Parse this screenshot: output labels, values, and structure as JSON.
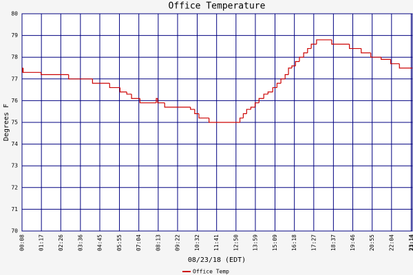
{
  "chart_data": {
    "type": "line",
    "title": "Office Temperature",
    "x_label": "08/23/18 (EDT)",
    "y_label": "Degrees F",
    "step": true,
    "grid": true,
    "grid_color": "#000080",
    "legend": "bottom",
    "x": [
      "00:08",
      "00:10",
      "00:12",
      "01:16",
      "02:54",
      "04:19",
      "05:20",
      "05:57",
      "06:21",
      "06:38",
      "07:08",
      "08:06",
      "08:11",
      "08:36",
      "10:08",
      "10:23",
      "10:38",
      "11:14",
      "13:04",
      "13:16",
      "13:28",
      "13:43",
      "13:58",
      "14:12",
      "14:29",
      "14:44",
      "15:01",
      "15:16",
      "15:30",
      "15:45",
      "15:57",
      "16:09",
      "16:22",
      "16:36",
      "16:51",
      "17:05",
      "17:18",
      "17:37",
      "18:31",
      "19:34",
      "20:16",
      "20:50",
      "21:27",
      "22:01",
      "22:32",
      "23:18"
    ],
    "series": [
      {
        "name": "Office Temp",
        "color": "#cc0000",
        "values": [
          77.3,
          77.5,
          77.3,
          77.2,
          77.0,
          76.8,
          76.6,
          76.4,
          76.3,
          76.1,
          75.9,
          76.1,
          75.9,
          75.7,
          75.6,
          75.4,
          75.2,
          75.0,
          75.2,
          75.4,
          75.6,
          75.7,
          75.9,
          76.1,
          76.3,
          76.4,
          76.6,
          76.8,
          77.0,
          77.2,
          77.5,
          77.6,
          77.8,
          78.0,
          78.2,
          78.4,
          78.6,
          78.8,
          78.6,
          78.4,
          78.2,
          78.0,
          77.9,
          77.7,
          77.5,
          77.5
        ]
      }
    ],
    "xlim": [
      "00:08",
      "23:18"
    ],
    "xticks": [
      "00:08",
      "01:17",
      "02:26",
      "03:36",
      "04:45",
      "05:55",
      "07:04",
      "08:13",
      "09:22",
      "10:32",
      "11:41",
      "12:50",
      "13:59",
      "15:09",
      "16:18",
      "17:27",
      "18:37",
      "19:46",
      "20:55",
      "22:04",
      "23:14",
      "23:18"
    ],
    "ylim": [
      70,
      80
    ],
    "yticks": [
      70,
      71,
      72,
      73,
      74,
      75,
      76,
      77,
      78,
      79,
      80
    ]
  }
}
